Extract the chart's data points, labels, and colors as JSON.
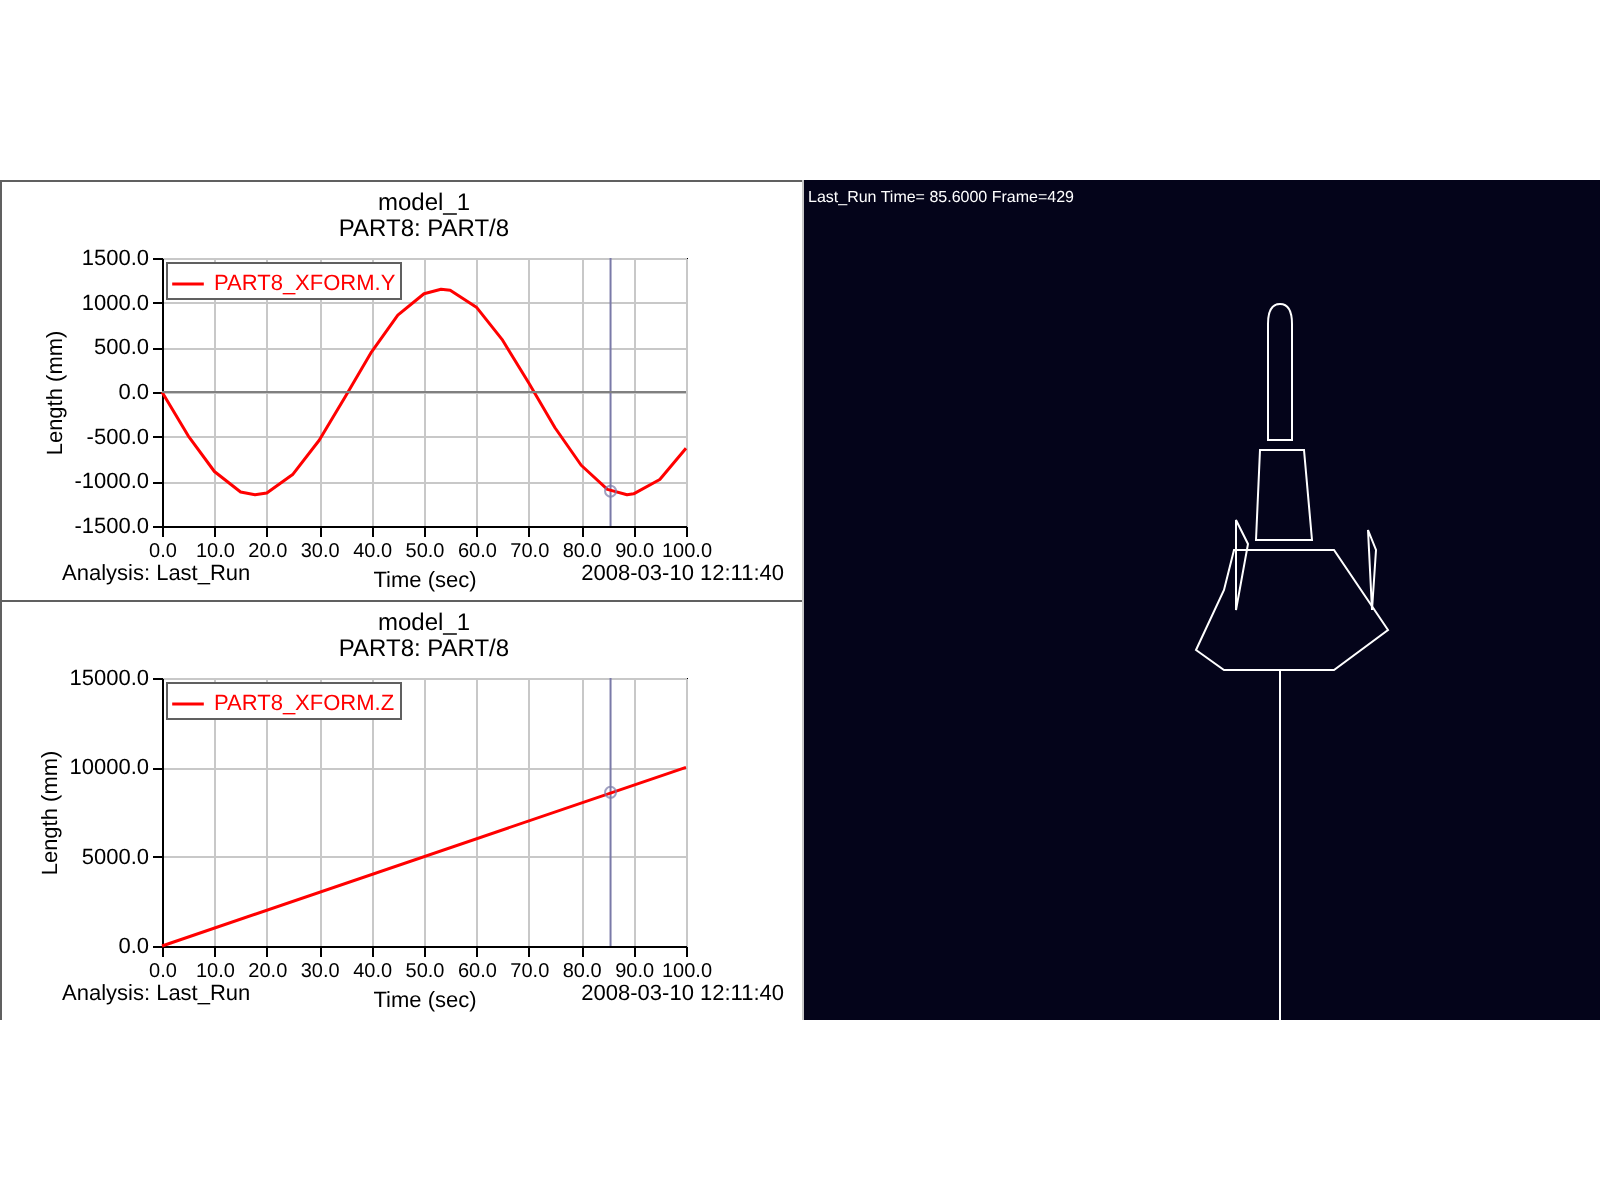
{
  "chart_data": [
    {
      "type": "line",
      "title": "model_1",
      "subtitle": "PART8: PART/8",
      "xlabel": "Time (sec)",
      "ylabel": "Length (mm)",
      "annotations": [
        "Analysis:  Last_Run",
        "2008-03-10 12:11:40"
      ],
      "x": [
        0,
        5,
        10,
        15,
        17.75,
        20,
        25,
        30,
        35,
        40,
        45,
        50,
        53.25,
        55,
        60,
        65,
        70,
        75,
        80,
        85,
        88.75,
        90,
        95,
        100
      ],
      "series": [
        {
          "name": "PART8_XFORM.Y",
          "color": "#ff0000",
          "values": [
            0,
            -490,
            -890,
            -1120,
            -1150,
            -1130,
            -920,
            -540,
            -50,
            450,
            860,
            1100,
            1150,
            1140,
            950,
            580,
            100,
            -400,
            -820,
            -1090,
            -1150,
            -1140,
            -980,
            -630
          ]
        },
        {
          "type": "scatter",
          "color": "#7a7aa8",
          "x": [
            85.6
          ],
          "values": [
            -1110
          ]
        }
      ],
      "xlim": [
        0,
        100
      ],
      "ylim": [
        -1500,
        1500
      ],
      "xticks": [
        {
          "value": 0,
          "label": "0.0"
        },
        {
          "value": 10,
          "label": "10.0"
        },
        {
          "value": 20,
          "label": "20.0"
        },
        {
          "value": 30,
          "label": "30.0"
        },
        {
          "value": 40,
          "label": "40.0"
        },
        {
          "value": 50,
          "label": "50.0"
        },
        {
          "value": 60,
          "label": "60.0"
        },
        {
          "value": 70,
          "label": "70.0"
        },
        {
          "value": 80,
          "label": "80.0"
        },
        {
          "value": 90,
          "label": "90.0"
        },
        {
          "value": 100,
          "label": "100.0"
        }
      ],
      "yticks": [
        {
          "value": -1500,
          "label": "-1500.0"
        },
        {
          "value": -1000,
          "label": "-1000.0"
        },
        {
          "value": -500,
          "label": "-500.0"
        },
        {
          "value": 0,
          "label": "0.0"
        },
        {
          "value": 500,
          "label": "500.0"
        },
        {
          "value": 1000,
          "label": "1000.0"
        },
        {
          "value": 1500,
          "label": "1500.0"
        }
      ],
      "ref_lines": [
        {
          "axis": "x",
          "value": 85.6,
          "color": "#7a7aa8"
        },
        {
          "axis": "y",
          "value": 0,
          "color": "#808080"
        }
      ],
      "grid": true,
      "legend": "top left"
    },
    {
      "type": "line",
      "title": "model_1",
      "subtitle": "PART8: PART/8",
      "xlabel": "Time (sec)",
      "ylabel": "Length (mm)",
      "annotations": [
        "Analysis:  Last_Run",
        "2008-03-10 12:11:40"
      ],
      "x": [
        0,
        100
      ],
      "series": [
        {
          "name": "PART8_XFORM.Z",
          "color": "#ff0000",
          "values": [
            0,
            10000
          ]
        },
        {
          "type": "scatter",
          "color": "#7a7aa8",
          "x": [
            85.6
          ],
          "values": [
            8600
          ]
        }
      ],
      "xlim": [
        0,
        100
      ],
      "ylim": [
        0,
        15000
      ],
      "xticks": [
        {
          "value": 0,
          "label": "0.0"
        },
        {
          "value": 10,
          "label": "10.0"
        },
        {
          "value": 20,
          "label": "20.0"
        },
        {
          "value": 30,
          "label": "30.0"
        },
        {
          "value": 40,
          "label": "40.0"
        },
        {
          "value": 50,
          "label": "50.0"
        },
        {
          "value": 60,
          "label": "60.0"
        },
        {
          "value": 70,
          "label": "70.0"
        },
        {
          "value": 80,
          "label": "80.0"
        },
        {
          "value": 90,
          "label": "90.0"
        },
        {
          "value": 100,
          "label": "100.0"
        }
      ],
      "yticks": [
        {
          "value": 0,
          "label": "0.0"
        },
        {
          "value": 5000,
          "label": "5000.0"
        },
        {
          "value": 10000,
          "label": "10000.0"
        },
        {
          "value": 15000,
          "label": "15000.0"
        }
      ],
      "ref_lines": [
        {
          "axis": "x",
          "value": 85.6,
          "color": "#7a7aa8"
        }
      ],
      "grid": true,
      "legend": "top left"
    },
    {
      "type": "other",
      "title": "Last_Run   Time= 85.6000  Frame=429"
    }
  ]
}
